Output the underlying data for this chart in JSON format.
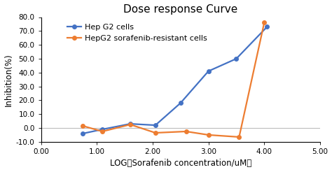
{
  "title": "Dose response Curve",
  "xlabel": "LOG（Sorafenib concentration/uM）",
  "ylabel": "Inhibition(%)",
  "xlim": [
    0.0,
    5.0
  ],
  "ylim": [
    -10.0,
    80.0
  ],
  "xticks": [
    0.0,
    1.0,
    2.0,
    3.0,
    4.0,
    5.0
  ],
  "yticks": [
    -10.0,
    0.0,
    10.0,
    20.0,
    30.0,
    40.0,
    50.0,
    60.0,
    70.0,
    80.0
  ],
  "blue_x": [
    0.75,
    1.1,
    1.6,
    2.05,
    2.5,
    3.0,
    3.5,
    4.05
  ],
  "blue_y": [
    -4.0,
    -1.0,
    3.0,
    2.0,
    18.0,
    41.0,
    50.0,
    73.0
  ],
  "orange_x": [
    0.75,
    1.1,
    1.6,
    2.05,
    2.6,
    3.0,
    3.55,
    4.0
  ],
  "orange_y": [
    1.5,
    -2.5,
    2.5,
    -3.5,
    -2.5,
    -5.0,
    -6.5,
    76.0
  ],
  "blue_color": "#4472C4",
  "orange_color": "#ED7D31",
  "blue_label": "Hep G2 cells",
  "orange_label": "HepG2 sorafenib-resistant cells",
  "bg_color": "#FFFFFF",
  "hline_y": 0.0,
  "hline_color": "#BBBBBB",
  "marker": "o",
  "markersize": 4,
  "linewidth": 1.6,
  "title_fontsize": 11,
  "axis_label_fontsize": 8.5,
  "tick_fontsize": 7.5,
  "legend_fontsize": 8
}
